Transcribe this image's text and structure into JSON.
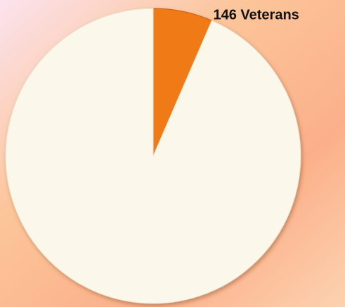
{
  "chart_data": {
    "type": "pie",
    "values": [
      146,
      2100
    ],
    "value_labels": [
      "146 Veterans",
      null
    ],
    "colors": [
      "#f07a16",
      "#fbf7ea"
    ]
  }
}
